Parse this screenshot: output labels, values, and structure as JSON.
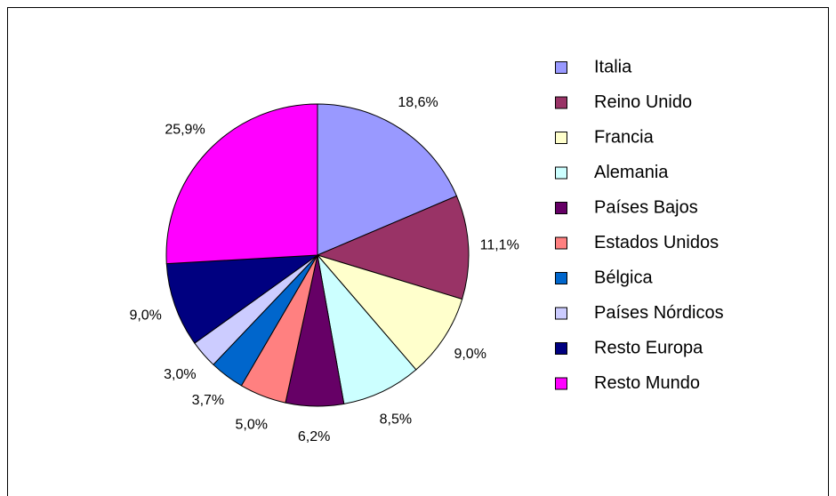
{
  "chart_data": {
    "type": "pie",
    "categories": [
      "Italia",
      "Reino Unido",
      "Francia",
      "Alemania",
      "Países Bajos",
      "Estados Unidos",
      "Bélgica",
      "Países Nórdicos",
      "Resto Europa",
      "Resto Mundo"
    ],
    "values": [
      18.6,
      11.1,
      9.0,
      8.5,
      6.2,
      5.0,
      3.7,
      3.0,
      9.0,
      25.9
    ],
    "value_labels": [
      "18,6%",
      "11,1%",
      "9,0%",
      "8,5%",
      "6,2%",
      "5,0%",
      "3,7%",
      "3,0%",
      "9,0%",
      "25,9%"
    ],
    "colors": [
      "#9999ff",
      "#993366",
      "#ffffcc",
      "#ccffff",
      "#660066",
      "#ff8080",
      "#0066cc",
      "#ccccff",
      "#000080",
      "#ff00ff"
    ],
    "legend": "right"
  }
}
